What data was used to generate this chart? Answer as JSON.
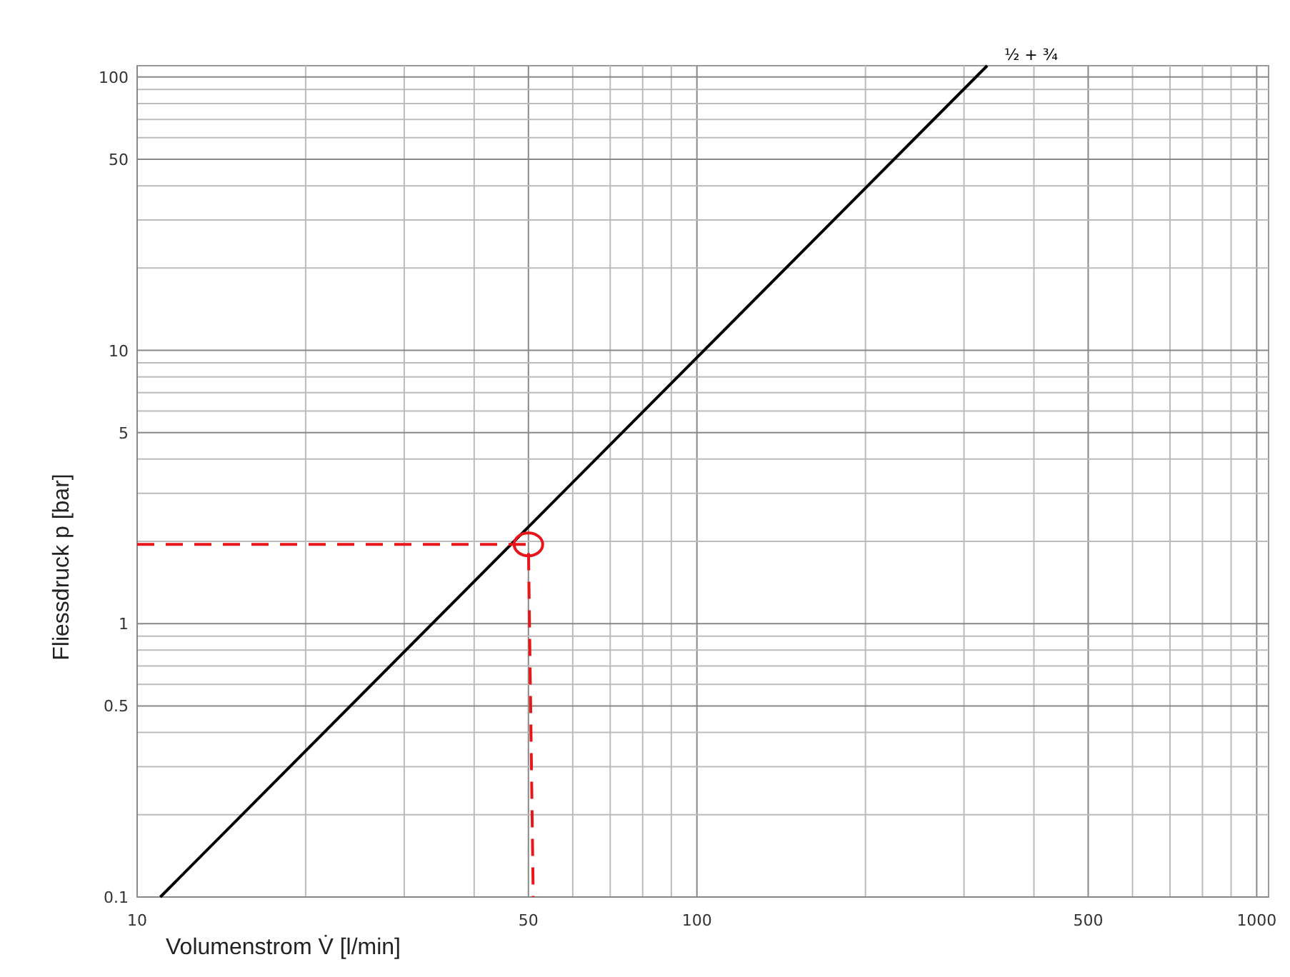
{
  "chart_data": {
    "type": "line",
    "xlabel": "Volumenstrom V̇ [l/min]",
    "ylabel": "Fliessdruck p [bar]",
    "log": "xy",
    "grid": true,
    "xlim": [
      10,
      1050
    ],
    "ylim": [
      0.1,
      110
    ],
    "xticks": [
      10,
      {
        "value": 20,
        "label": null
      },
      {
        "value": 30,
        "label": null
      },
      {
        "value": 40,
        "label": null
      },
      50,
      {
        "value": 60,
        "label": null
      },
      {
        "value": 70,
        "label": null
      },
      {
        "value": 80,
        "label": null
      },
      {
        "value": 90,
        "label": null
      },
      100,
      {
        "value": 200,
        "label": null
      },
      {
        "value": 300,
        "label": null
      },
      {
        "value": 400,
        "label": null
      },
      500,
      {
        "value": 600,
        "label": null
      },
      {
        "value": 700,
        "label": null
      },
      {
        "value": 800,
        "label": null
      },
      {
        "value": 900,
        "label": null
      },
      1000
    ],
    "yticks": [
      0.1,
      {
        "value": 0.2,
        "label": null
      },
      {
        "value": 0.3,
        "label": null
      },
      {
        "value": 0.4,
        "label": null
      },
      0.5,
      {
        "value": 0.6,
        "label": null
      },
      {
        "value": 0.7,
        "label": null
      },
      {
        "value": 0.8,
        "label": null
      },
      {
        "value": 0.9,
        "label": null
      },
      1,
      {
        "value": 2,
        "label": null
      },
      {
        "value": 3,
        "label": null
      },
      {
        "value": 4,
        "label": null
      },
      5,
      {
        "value": 6,
        "label": null
      },
      {
        "value": 7,
        "label": null
      },
      {
        "value": 8,
        "label": null
      },
      {
        "value": 9,
        "label": null
      },
      10,
      {
        "value": 20,
        "label": null
      },
      {
        "value": 30,
        "label": null
      },
      {
        "value": 40,
        "label": null
      },
      50,
      {
        "value": 60,
        "label": null
      },
      {
        "value": 70,
        "label": null
      },
      {
        "value": 80,
        "label": null
      },
      {
        "value": 90,
        "label": null
      },
      100
    ],
    "series": [
      {
        "name": "½ + ¾",
        "color": "#000000",
        "x": [
          11,
          330
        ],
        "values": [
          0.1,
          110
        ]
      },
      {
        "color": "#e8161b",
        "line_style": "dashed",
        "x": [
          10,
          50,
          51
        ],
        "values": [
          1.95,
          1.95,
          0.1
        ]
      }
    ]
  }
}
